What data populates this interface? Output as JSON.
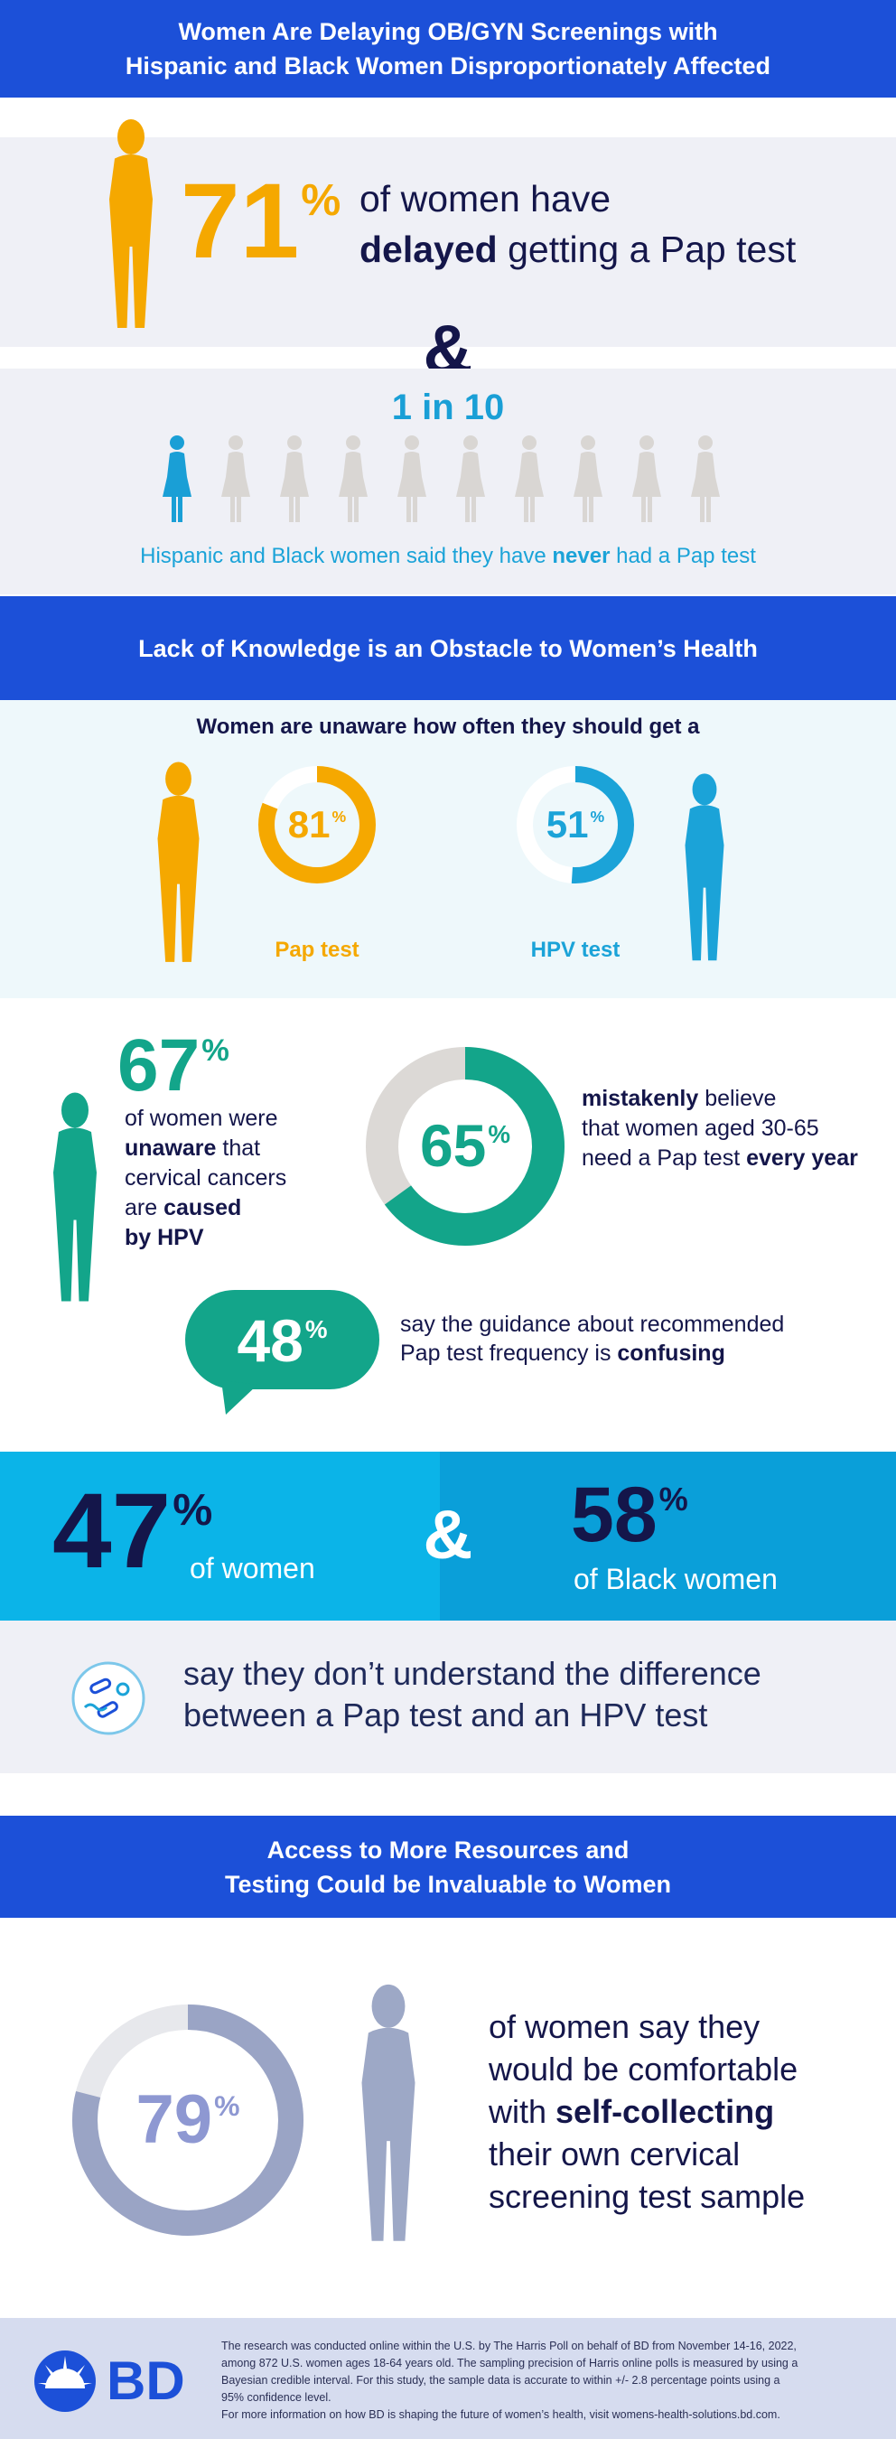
{
  "header": {
    "title_lines": [
      "Women Are Delaying OB/GYN Screenings with",
      "Hispanic and Black Women Disproportionately Affected"
    ]
  },
  "pap_delay": {
    "percent": 71,
    "unit": "%",
    "text": [
      [
        "of women have"
      ],
      [
        {
          "strong": "delayed"
        },
        " getting a Pap test"
      ]
    ]
  },
  "ampersand": "&",
  "never": {
    "ratio": "1 in 10",
    "text": [
      [
        "Hispanic and Black women said they have ",
        {
          "strong": "never"
        },
        " had a Pap test"
      ]
    ]
  },
  "knowledge": {
    "title": "Lack of Knowledge is an Obstacle to Women’s Health",
    "subtitle": "Women are unaware how often they should get a",
    "donuts": [
      {
        "percent": 81,
        "unit": "%",
        "label": "Pap test",
        "color": "#f5a800",
        "track_color": "#ffffff"
      },
      {
        "percent": 51,
        "unit": "%",
        "label": "HPV test",
        "color": "#1ba3d8",
        "track_color": "#ffffff"
      }
    ]
  },
  "hpv_cause": {
    "percent": 67,
    "unit": "%",
    "text": [
      [
        "of women were"
      ],
      [
        {
          "strong": "unaware"
        },
        " that"
      ],
      [
        "cervical cancers"
      ],
      [
        "are ",
        {
          "strong": "caused"
        }
      ],
      [
        {
          "strong": "by HPV"
        }
      ]
    ]
  },
  "annual": {
    "percent": 65,
    "unit": "%",
    "color": "#13a58a",
    "track_color": "#dcd9d6",
    "text": [
      [
        {
          "strong": "mistakenly"
        },
        " believe"
      ],
      [
        "that women aged 30-65"
      ],
      [
        "need a Pap test ",
        {
          "strong": "every year"
        }
      ]
    ]
  },
  "confusing": {
    "percent": 48,
    "unit": "%",
    "text": [
      [
        "say the guidance about recommended"
      ],
      [
        "Pap test frequency is ",
        {
          "strong": "confusing"
        }
      ]
    ]
  },
  "difference": {
    "stats": [
      {
        "percent": 47,
        "unit": "%",
        "group": "of women"
      },
      {
        "percent": 58,
        "unit": "%",
        "group": "of Black women"
      }
    ],
    "ampersand": "&",
    "text": [
      [
        "say they don’t understand the difference"
      ],
      [
        "between a Pap test and an HPV test"
      ]
    ]
  },
  "resources": {
    "title_lines": [
      "Access to More Resources and",
      "Testing Could be Invaluable to Women"
    ],
    "percent": 79,
    "unit": "%",
    "color": "#9aa4c5",
    "track_color": "#e7e8ec",
    "text": [
      [
        "of women say they"
      ],
      [
        "would be comfortable"
      ],
      [
        "with ",
        {
          "strong": "self-collecting"
        }
      ],
      [
        "their own cervical"
      ],
      [
        "screening test sample"
      ]
    ]
  },
  "footer": {
    "logo": "BD",
    "notes": [
      "The research was conducted online within the U.S. by The Harris Poll on behalf of BD from November 14-16, 2022,",
      "among 872 U.S. women ages 18-64 years old. The sampling precision of Harris online polls is measured by using a",
      "Bayesian credible interval. For this study, the sample data is accurate to within +/- 2.8 percentage points using a",
      "95% confidence level.",
      "For more information on how BD is shaping the future of women’s health, visit womens-health-solutions.bd.com."
    ]
  }
}
